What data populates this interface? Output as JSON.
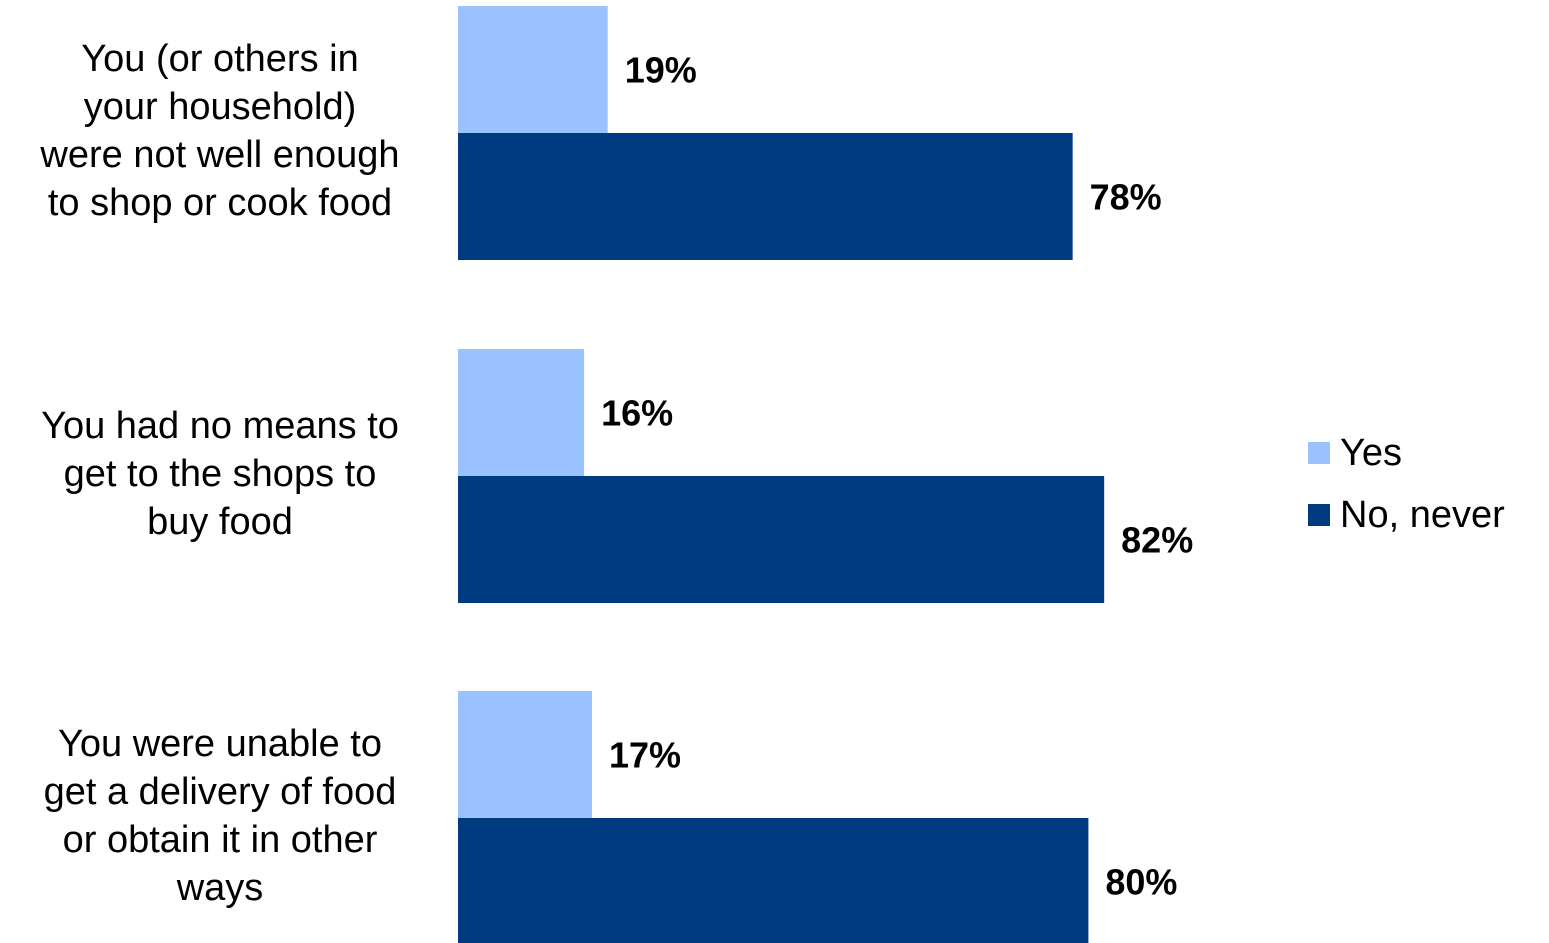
{
  "chart_data": {
    "type": "bar",
    "orientation": "horizontal",
    "categories": [
      "You (or others in your household) were not well enough to shop or cook food",
      "You had no means to get to the shops to buy food",
      "You were unable to get a delivery of food or obtain it in other ways"
    ],
    "series": [
      {
        "name": "Yes",
        "values": [
          19,
          16,
          17
        ],
        "color": "#99c2ff"
      },
      {
        "name": "No, never",
        "values": [
          78,
          82,
          80
        ],
        "color": "#003a80"
      }
    ],
    "value_format": "{v}%",
    "xlim": [
      0,
      100
    ],
    "grid": false,
    "legend_position": "right",
    "title": "",
    "xlabel": "",
    "ylabel": ""
  },
  "category_lines": [
    [
      "You (or others in",
      "your household)",
      "were not well enough",
      "to shop or cook food"
    ],
    [
      "You had no means to",
      "get to the shops to",
      "buy food"
    ],
    [
      "You were unable to",
      "get a delivery of food",
      "or obtain it in other",
      "ways"
    ]
  ]
}
